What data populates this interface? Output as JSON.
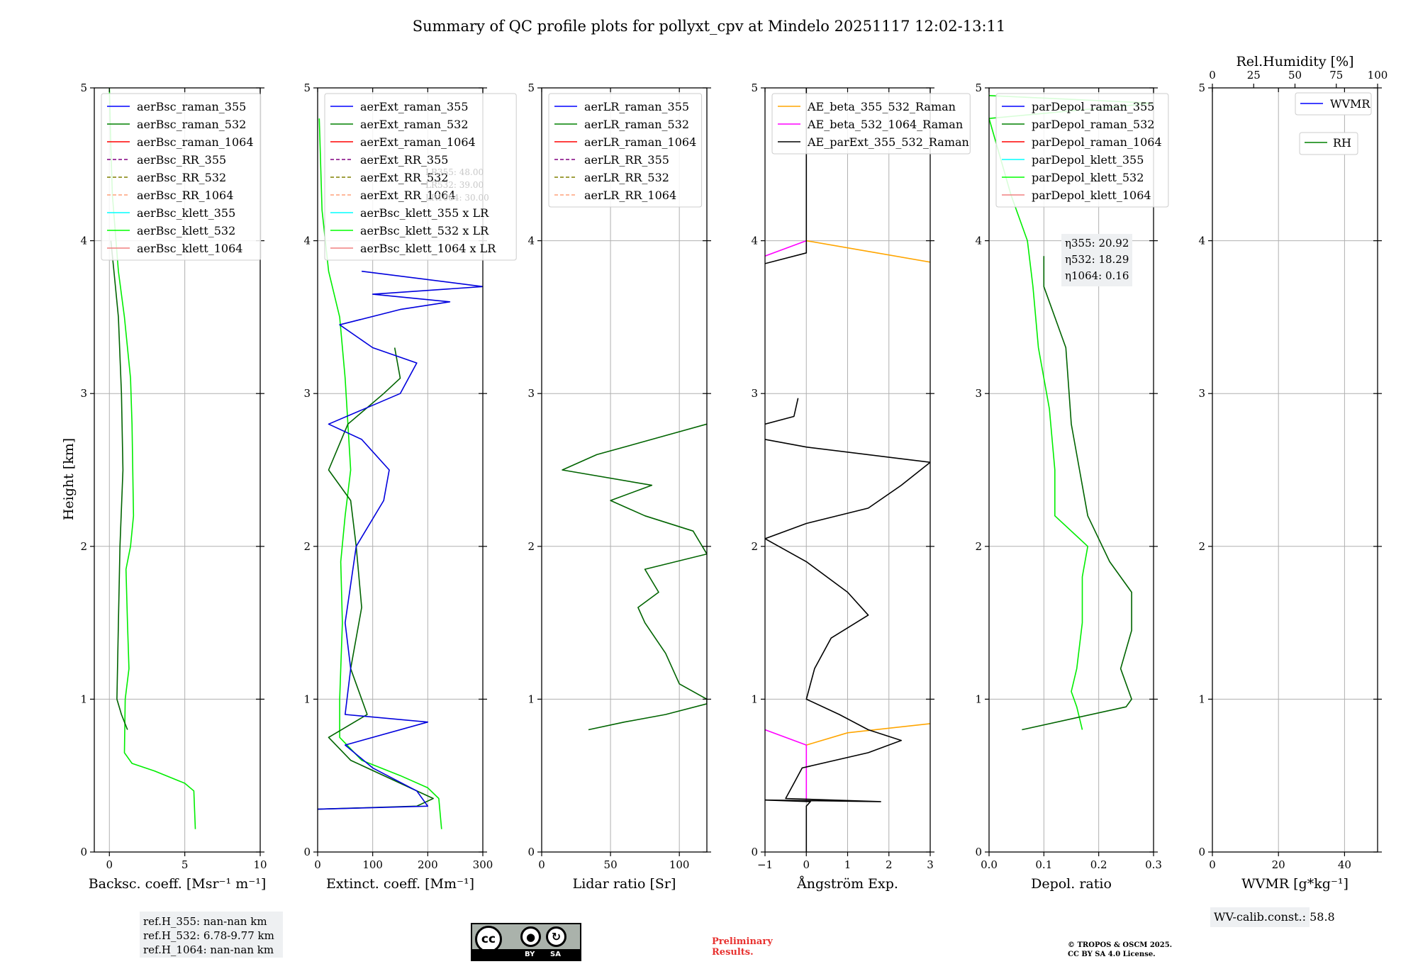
{
  "title": "Summary of QC profile plots for pollyxt_cpv at Mindelo 20251117 12:02-13:11",
  "ylabel": "Height [km]",
  "chart_data": [
    {
      "type": "line",
      "xlabel": "Backsc. coeff. [Msr⁻¹ m⁻¹]",
      "xlim": [
        -1,
        10
      ],
      "ylim": [
        0,
        5
      ],
      "xticks": [
        0,
        5,
        10
      ],
      "yticks": [
        0,
        1,
        2,
        3,
        4,
        5
      ],
      "legend": [
        "aerBsc_raman_355",
        "aerBsc_raman_532",
        "aerBsc_raman_1064",
        "aerBsc_RR_355",
        "aerBsc_RR_532",
        "aerBsc_RR_1064",
        "aerBsc_klett_355",
        "aerBsc_klett_532",
        "aerBsc_klett_1064"
      ],
      "series": [
        {
          "name": "aerBsc_klett_532",
          "color": "#00ee00",
          "points": [
            [
              5.7,
              0.15
            ],
            [
              5.6,
              0.4
            ],
            [
              5.0,
              0.45
            ],
            [
              3.0,
              0.53
            ],
            [
              1.5,
              0.58
            ],
            [
              1.0,
              0.65
            ],
            [
              1.05,
              1.0
            ],
            [
              1.3,
              1.2
            ],
            [
              1.2,
              1.5
            ],
            [
              1.1,
              1.85
            ],
            [
              1.4,
              2.0
            ],
            [
              1.6,
              2.2
            ],
            [
              1.5,
              2.8
            ],
            [
              1.4,
              3.1
            ],
            [
              1.0,
              3.5
            ],
            [
              0.6,
              3.8
            ],
            [
              0.2,
              4.3
            ],
            [
              0.1,
              4.6
            ],
            [
              0.0,
              5.0
            ]
          ]
        },
        {
          "name": "aerBsc_raman_532",
          "color": "#006400",
          "points": [
            [
              1.2,
              0.8
            ],
            [
              0.8,
              0.9
            ],
            [
              0.5,
              1.0
            ],
            [
              0.6,
              1.5
            ],
            [
              0.7,
              2.0
            ],
            [
              0.9,
              2.5
            ],
            [
              0.8,
              3.0
            ],
            [
              0.6,
              3.5
            ],
            [
              0.3,
              3.8
            ],
            [
              0.1,
              4.0
            ]
          ]
        }
      ],
      "refbox": [
        "ref.H_355: nan-nan km",
        "ref.H_532: 6.78-9.77 km",
        "ref.H_1064: nan-nan km"
      ]
    },
    {
      "type": "line",
      "xlabel": "Extinct. coeff. [Mm⁻¹]",
      "xlim": [
        0,
        300
      ],
      "ylim": [
        0,
        5
      ],
      "xticks": [
        0,
        100,
        200,
        300
      ],
      "yticks": [
        0,
        1,
        2,
        3,
        4,
        5
      ],
      "legend": [
        "aerExt_raman_355",
        "aerExt_raman_532",
        "aerExt_raman_1064",
        "aerExt_RR_355",
        "aerExt_RR_532",
        "aerExt_RR_1064",
        "aerBsc_klett_355 x LR",
        "aerBsc_klett_532 x LR",
        "aerBsc_klett_1064 x LR"
      ],
      "lr_labels": [
        "LR355: 48.00",
        "LR532: 39.00",
        "LR1064: 30.00"
      ],
      "series": [
        {
          "name": "aerBsc_klett_532 x LR",
          "color": "#00ee00",
          "points": [
            [
              225,
              0.15
            ],
            [
              220,
              0.35
            ],
            [
              200,
              0.42
            ],
            [
              150,
              0.5
            ],
            [
              80,
              0.6
            ],
            [
              40,
              0.75
            ],
            [
              40,
              1.0
            ],
            [
              45,
              1.5
            ],
            [
              42,
              1.9
            ],
            [
              50,
              2.2
            ],
            [
              60,
              2.5
            ],
            [
              55,
              2.8
            ],
            [
              50,
              3.1
            ],
            [
              40,
              3.5
            ],
            [
              20,
              3.8
            ],
            [
              8,
              4.2
            ],
            [
              3,
              4.8
            ]
          ]
        },
        {
          "name": "aerExt_raman_532",
          "color": "#006400",
          "points": [
            [
              0,
              0.28
            ],
            [
              180,
              0.3
            ],
            [
              210,
              0.35
            ],
            [
              150,
              0.45
            ],
            [
              60,
              0.6
            ],
            [
              20,
              0.75
            ],
            [
              90,
              0.9
            ],
            [
              60,
              1.2
            ],
            [
              80,
              1.6
            ],
            [
              70,
              2.0
            ],
            [
              60,
              2.3
            ],
            [
              20,
              2.5
            ],
            [
              55,
              2.8
            ],
            [
              120,
              3.0
            ],
            [
              150,
              3.1
            ],
            [
              140,
              3.3
            ]
          ]
        },
        {
          "name": "aerExt_raman_355",
          "color": "#0000dd",
          "points": [
            [
              0,
              0.28
            ],
            [
              200,
              0.3
            ],
            [
              180,
              0.4
            ],
            [
              100,
              0.55
            ],
            [
              50,
              0.7
            ],
            [
              200,
              0.85
            ],
            [
              50,
              0.9
            ],
            [
              60,
              1.2
            ],
            [
              50,
              1.5
            ],
            [
              70,
              2.0
            ],
            [
              120,
              2.3
            ],
            [
              130,
              2.5
            ],
            [
              80,
              2.7
            ],
            [
              20,
              2.8
            ],
            [
              150,
              3.0
            ],
            [
              180,
              3.2
            ],
            [
              100,
              3.3
            ],
            [
              40,
              3.45
            ],
            [
              150,
              3.55
            ],
            [
              240,
              3.6
            ],
            [
              100,
              3.65
            ],
            [
              300,
              3.7
            ],
            [
              80,
              3.8
            ]
          ]
        }
      ]
    },
    {
      "type": "line",
      "xlabel": "Lidar ratio [Sr]",
      "xlim": [
        0,
        120
      ],
      "ylim": [
        0,
        5
      ],
      "xticks": [
        0,
        50,
        100
      ],
      "yticks": [
        0,
        1,
        2,
        3,
        4,
        5
      ],
      "legend": [
        "aerLR_raman_355",
        "aerLR_raman_532",
        "aerLR_raman_1064",
        "aerLR_RR_355",
        "aerLR_RR_532",
        "aerLR_RR_1064"
      ],
      "series": [
        {
          "name": "aerLR_raman_532",
          "color": "#006400",
          "points": [
            [
              34,
              0.8
            ],
            [
              60,
              0.85
            ],
            [
              90,
              0.9
            ],
            [
              120,
              0.97
            ],
            [
              120,
              1.0
            ],
            [
              100,
              1.1
            ],
            [
              90,
              1.3
            ],
            [
              75,
              1.5
            ],
            [
              70,
              1.6
            ],
            [
              85,
              1.7
            ],
            [
              75,
              1.85
            ],
            [
              120,
              1.95
            ],
            [
              110,
              2.1
            ],
            [
              75,
              2.2
            ],
            [
              50,
              2.3
            ],
            [
              80,
              2.4
            ],
            [
              15,
              2.5
            ],
            [
              40,
              2.6
            ],
            [
              80,
              2.7
            ],
            [
              120,
              2.8
            ]
          ]
        }
      ]
    },
    {
      "type": "line",
      "xlabel": "Ångström Exp.",
      "xlim": [
        -1,
        3
      ],
      "ylim": [
        0,
        5
      ],
      "xticks": [
        -1,
        0,
        1,
        2,
        3
      ],
      "yticks": [
        0,
        1,
        2,
        3,
        4,
        5
      ],
      "legend": [
        "AE_beta_355_532_Raman",
        "AE_beta_532_1064_Raman",
        "AE_parExt_355_532_Raman"
      ],
      "series": [
        {
          "name": "AE_beta_355_532_Raman",
          "color": "#ffa500",
          "points": [
            [
              0,
              0.7
            ],
            [
              1.0,
              0.78
            ],
            [
              3,
              0.84
            ]
          ]
        },
        {
          "name": "AE_beta_355_532_Raman",
          "color": "#ffa500",
          "points": [
            [
              0,
              4.0
            ],
            [
              1.5,
              3.93
            ],
            [
              3,
              3.86
            ]
          ]
        },
        {
          "name": "AE_beta_532_1064_Raman",
          "color": "#ff00ff",
          "points": [
            [
              -1,
              0.8
            ],
            [
              0,
              0.7
            ],
            [
              0,
              0.33
            ]
          ]
        },
        {
          "name": "AE_beta_532_1064_Raman",
          "color": "#ff00ff",
          "points": [
            [
              -1,
              3.9
            ],
            [
              0,
              4.0
            ]
          ]
        },
        {
          "name": "AE_parExt_355_532_Raman",
          "color": "#000000",
          "points": [
            [
              0,
              0
            ],
            [
              0,
              0.3
            ],
            [
              0.1,
              0.33
            ],
            [
              -1,
              0.34
            ],
            [
              1.8,
              0.33
            ],
            [
              -0.5,
              0.35
            ],
            [
              -0.3,
              0.45
            ],
            [
              -0.1,
              0.55
            ],
            [
              1.5,
              0.65
            ],
            [
              2.3,
              0.73
            ],
            [
              1.5,
              0.8
            ],
            [
              0.8,
              0.9
            ],
            [
              0,
              1.0
            ],
            [
              0.2,
              1.2
            ],
            [
              0.6,
              1.4
            ],
            [
              1.5,
              1.55
            ],
            [
              1.0,
              1.7
            ],
            [
              0,
              1.9
            ],
            [
              -1,
              2.05
            ],
            [
              0,
              2.15
            ],
            [
              1.5,
              2.25
            ],
            [
              2.3,
              2.4
            ],
            [
              3,
              2.55
            ],
            [
              0,
              2.65
            ],
            [
              -1,
              2.7
            ]
          ]
        },
        {
          "name": "AE_parExt_355_532_Raman",
          "color": "#000000",
          "points": [
            [
              -1,
              2.8
            ],
            [
              -0.3,
              2.85
            ],
            [
              -0.2,
              2.97
            ]
          ]
        },
        {
          "name": "AE_parExt_355_532_Raman",
          "color": "#000000",
          "points": [
            [
              -1,
              3.85
            ],
            [
              0,
              3.92
            ],
            [
              0,
              5
            ]
          ]
        }
      ]
    },
    {
      "type": "line",
      "xlabel": "Depol. ratio",
      "xlim": [
        0,
        0.3
      ],
      "ylim": [
        0,
        5
      ],
      "xticks": [
        0.0,
        0.1,
        0.2,
        0.3
      ],
      "yticks": [
        0,
        1,
        2,
        3,
        4,
        5
      ],
      "legend": [
        "parDepol_raman_355",
        "parDepol_raman_532",
        "parDepol_raman_1064",
        "parDepol_klett_355",
        "parDepol_klett_532",
        "parDepol_klett_1064"
      ],
      "eta": [
        "η355: 20.92",
        "η532: 18.29",
        "η1064: 0.16"
      ],
      "series": [
        {
          "name": "parDepol_klett_532",
          "color": "#00ee00",
          "points": [
            [
              0.17,
              0.8
            ],
            [
              0.16,
              0.95
            ],
            [
              0.15,
              1.05
            ],
            [
              0.16,
              1.2
            ],
            [
              0.17,
              1.5
            ],
            [
              0.17,
              1.8
            ],
            [
              0.18,
              2.0
            ],
            [
              0.12,
              2.2
            ],
            [
              0.12,
              2.5
            ],
            [
              0.11,
              2.9
            ],
            [
              0.09,
              3.3
            ],
            [
              0.08,
              3.7
            ],
            [
              0.07,
              4.0
            ],
            [
              0.04,
              4.3
            ],
            [
              0.0,
              4.8
            ],
            [
              0.3,
              4.9
            ],
            [
              0.0,
              4.95
            ]
          ]
        },
        {
          "name": "parDepol_raman_532",
          "color": "#006400",
          "points": [
            [
              0.06,
              0.8
            ],
            [
              0.25,
              0.95
            ],
            [
              0.26,
              1.0
            ],
            [
              0.24,
              1.2
            ],
            [
              0.26,
              1.45
            ],
            [
              0.26,
              1.7
            ],
            [
              0.22,
              1.9
            ],
            [
              0.18,
              2.2
            ],
            [
              0.15,
              2.8
            ],
            [
              0.14,
              3.3
            ],
            [
              0.1,
              3.7
            ],
            [
              0.1,
              3.9
            ]
          ]
        }
      ]
    },
    {
      "type": "line",
      "xlabel": "WVMR [g*kg⁻¹]",
      "top_xlabel": "Rel.Humidity [%]",
      "xlim": [
        0,
        50
      ],
      "ylim": [
        0,
        5
      ],
      "xticks": [
        0,
        20,
        40
      ],
      "top_xticks": [
        0,
        25,
        50,
        75,
        100
      ],
      "yticks": [
        0,
        1,
        2,
        3,
        4,
        5
      ],
      "legend": [
        "WVMR",
        "RH"
      ],
      "series": [],
      "calib": "WV-calib.const.: 58.8"
    }
  ],
  "footer": {
    "cc_by": "BY",
    "cc_sa": "SA",
    "cc_mark": "cc",
    "preliminary": [
      "Preliminary",
      "Results."
    ],
    "copyright": [
      "© TROPOS & OSCM 2025.",
      "CC BY SA 4.0 License."
    ]
  }
}
